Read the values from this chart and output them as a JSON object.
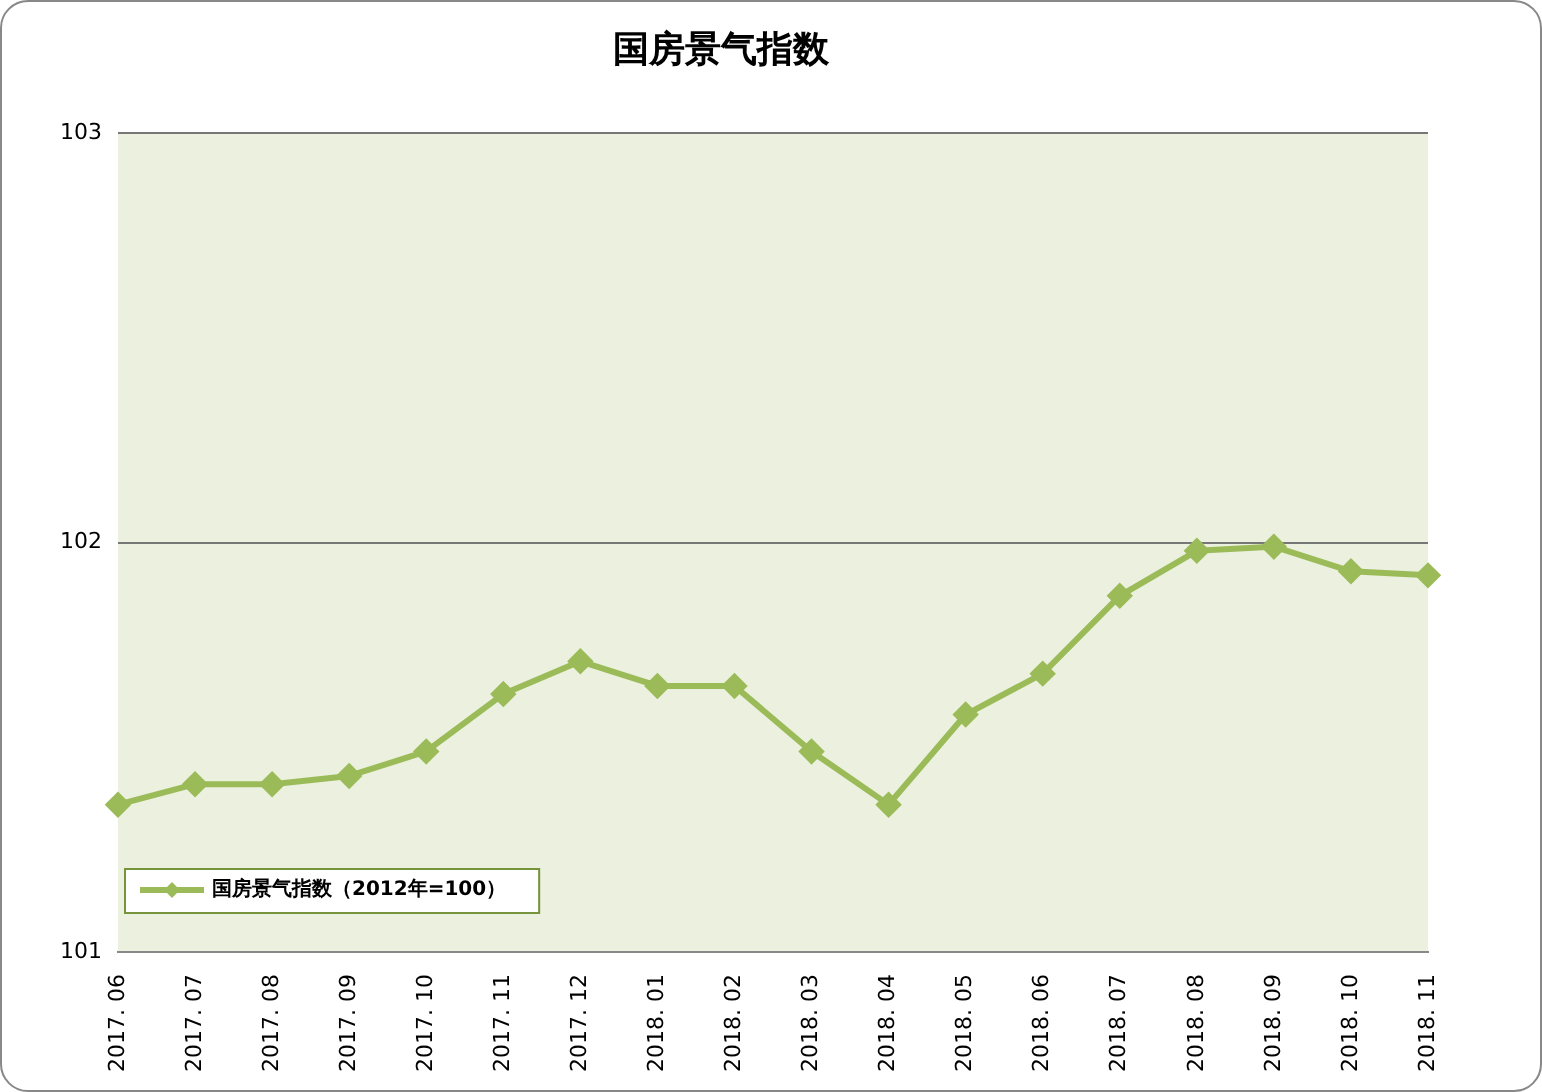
{
  "chart_data": {
    "type": "line",
    "title": "国房景气指数",
    "categories": [
      "2017. 06",
      "2017. 07",
      "2017. 08",
      "2017. 09",
      "2017. 10",
      "2017. 11",
      "2017. 12",
      "2018. 01",
      "2018. 02",
      "2018. 03",
      "2018. 04",
      "2018. 05",
      "2018. 06",
      "2018. 07",
      "2018. 08",
      "2018. 09",
      "2018. 10",
      "2018. 11"
    ],
    "series": [
      {
        "name": "国房景气指数（2012年=100）",
        "color": "#9bbb59",
        "values": [
          101.36,
          101.41,
          101.41,
          101.43,
          101.49,
          101.63,
          101.71,
          101.65,
          101.65,
          101.49,
          101.36,
          101.58,
          101.68,
          101.87,
          101.98,
          101.99,
          101.93,
          101.92
        ]
      }
    ],
    "ylim": [
      101,
      103
    ],
    "yticks": [
      101,
      102,
      103
    ],
    "grid": "y",
    "legend": "bottom left",
    "marker": "diamond",
    "line_style": "solid"
  }
}
